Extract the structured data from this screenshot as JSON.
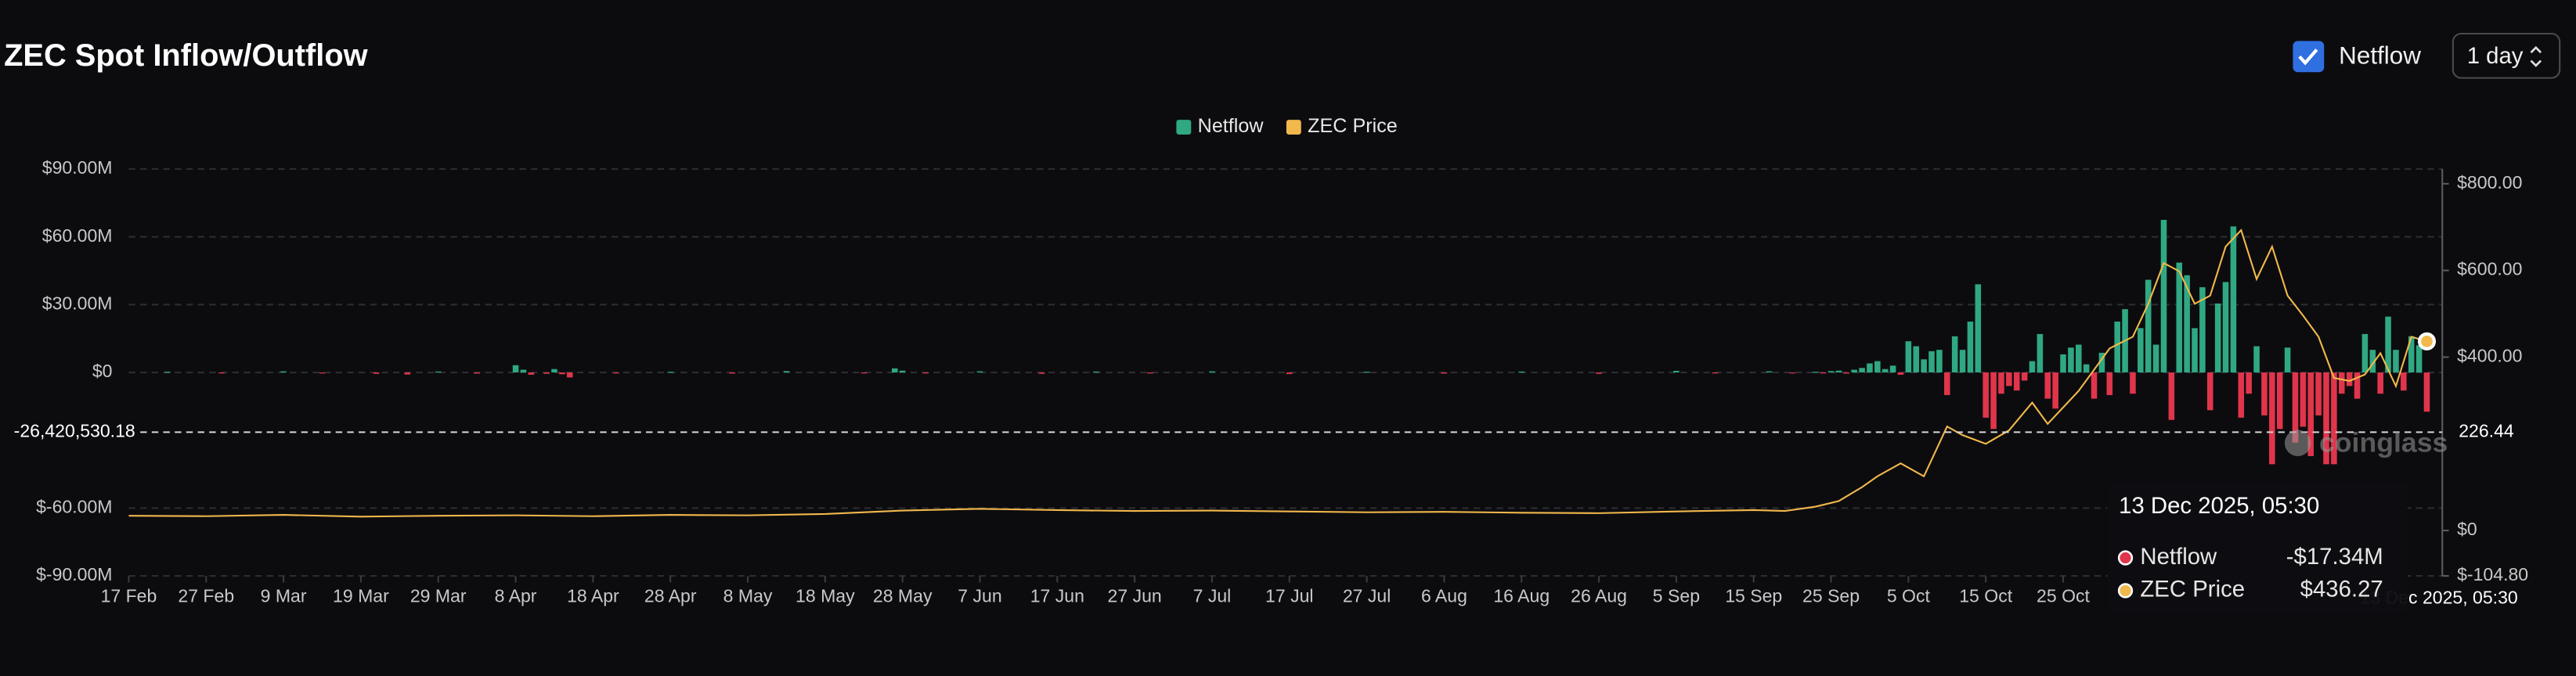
{
  "header": {
    "title": "ZEC Spot Inflow/Outflow",
    "checkbox_label": "Netflow",
    "interval": "1 day"
  },
  "watermark": "coinglass",
  "chart_data": {
    "type": "combo",
    "xlim": [
      0,
      299
    ],
    "xticks": [
      {
        "value": 0,
        "label": "17 Feb"
      },
      {
        "value": 10,
        "label": "27 Feb"
      },
      {
        "value": 20,
        "label": "9 Mar"
      },
      {
        "value": 30,
        "label": "19 Mar"
      },
      {
        "value": 40,
        "label": "29 Mar"
      },
      {
        "value": 50,
        "label": "8 Apr"
      },
      {
        "value": 60,
        "label": "18 Apr"
      },
      {
        "value": 70,
        "label": "28 Apr"
      },
      {
        "value": 80,
        "label": "8 May"
      },
      {
        "value": 90,
        "label": "18 May"
      },
      {
        "value": 100,
        "label": "28 May"
      },
      {
        "value": 110,
        "label": "7 Jun"
      },
      {
        "value": 120,
        "label": "17 Jun"
      },
      {
        "value": 130,
        "label": "27 Jun"
      },
      {
        "value": 140,
        "label": "7 Jul"
      },
      {
        "value": 150,
        "label": "17 Jul"
      },
      {
        "value": 160,
        "label": "27 Jul"
      },
      {
        "value": 170,
        "label": "6 Aug"
      },
      {
        "value": 180,
        "label": "16 Aug"
      },
      {
        "value": 190,
        "label": "26 Aug"
      },
      {
        "value": 200,
        "label": "5 Sep"
      },
      {
        "value": 210,
        "label": "15 Sep"
      },
      {
        "value": 220,
        "label": "25 Sep"
      },
      {
        "value": 230,
        "label": "5 Oct"
      },
      {
        "value": 240,
        "label": "15 Oct"
      },
      {
        "value": 250,
        "label": "25 Oct"
      }
    ],
    "ylim": [
      -90000000,
      90000000
    ],
    "yticks": [
      {
        "value": 90000000,
        "label": "$90.00M"
      },
      {
        "value": 60000000,
        "label": "$60.00M"
      },
      {
        "value": 30000000,
        "label": "$30.00M"
      },
      {
        "value": 0,
        "label": "$0"
      },
      {
        "value": -60000000,
        "label": "$-60.00M"
      },
      {
        "value": -90000000,
        "label": "$-90.00M"
      }
    ],
    "y2lim": [
      -104.8,
      834
    ],
    "y2ticks": [
      {
        "value": 800,
        "label": "$800.00"
      },
      {
        "value": 600,
        "label": "$600.00"
      },
      {
        "value": 400,
        "label": "$400.00"
      },
      {
        "value": 0,
        "label": "$0"
      },
      {
        "value": -104.8,
        "label": "$-104.80"
      }
    ],
    "grid": true,
    "series": [
      {
        "name": "Netflow",
        "kind": "bar",
        "color": "#2fa883",
        "negative_color": "#e0354b",
        "x": [
          5,
          12,
          20,
          25,
          32,
          36,
          40,
          45,
          50,
          51,
          52,
          54,
          55,
          56,
          57,
          63,
          70,
          78,
          85,
          95,
          99,
          100,
          103,
          110,
          118,
          125,
          132,
          140,
          150,
          160,
          170,
          180,
          190,
          200,
          205,
          212,
          215,
          218,
          219,
          220,
          221,
          222,
          223,
          224,
          225,
          226,
          227,
          228,
          229,
          230,
          231,
          232,
          233,
          234,
          235,
          236,
          237,
          238,
          239,
          240,
          241,
          242,
          243,
          244,
          245,
          246,
          247,
          248,
          249,
          250,
          251,
          252,
          253,
          254,
          255,
          256,
          257,
          258,
          259,
          260,
          261,
          262,
          263,
          264,
          265,
          266,
          267,
          268,
          269,
          270,
          271,
          272,
          273,
          274,
          275,
          276,
          277,
          278,
          279,
          280,
          281,
          282,
          283,
          284,
          285,
          286,
          287,
          288,
          289,
          290,
          291,
          292,
          293,
          294,
          295,
          296,
          297
        ],
        "values": [
          300000,
          -400000,
          500000,
          -300000,
          -600000,
          -900000,
          400000,
          -500000,
          3200000,
          1200000,
          -1000000,
          -600000,
          1500000,
          -800000,
          -2200000,
          -400000,
          300000,
          -500000,
          600000,
          -300000,
          1800000,
          800000,
          -400000,
          500000,
          -600000,
          400000,
          -300000,
          500000,
          -700000,
          300000,
          -500000,
          400000,
          -600000,
          700000,
          -400000,
          500000,
          -300000,
          300000,
          -400000,
          600000,
          800000,
          -500000,
          1200000,
          2000000,
          4000000,
          5000000,
          1500000,
          3000000,
          -1000000,
          13800000,
          11600000,
          5800000,
          9400000,
          10000000,
          -10000000,
          16000000,
          10000000,
          22500000,
          39000000,
          -20000000,
          -25000000,
          -9400000,
          -6000000,
          -8000000,
          -3600000,
          5000000,
          17000000,
          -11600000,
          -16000000,
          8000000,
          11000000,
          12300000,
          3600000,
          -11600000,
          8700000,
          -10000000,
          22500000,
          28000000,
          -9400000,
          19600000,
          41000000,
          12300000,
          67500000,
          -21000000,
          48600000,
          43000000,
          19600000,
          37700000,
          -16700000,
          30500000,
          40000000,
          64600000,
          -20000000,
          -9400000,
          11600000,
          -19000000,
          -40600000,
          -25000000,
          11000000,
          -31000000,
          -24000000,
          -37000000,
          -19000000,
          -40600000,
          -40600000,
          -9400000,
          -6000000,
          -11600000,
          17000000,
          10000000,
          -9400000,
          24700000,
          10000000,
          -8000000,
          16000000,
          12000000,
          -17340000
        ]
      },
      {
        "name": "ZEC Price",
        "kind": "line",
        "axis": "y2",
        "color": "#f2b84b",
        "x": [
          0,
          10,
          20,
          30,
          40,
          50,
          60,
          70,
          80,
          90,
          100,
          110,
          120,
          130,
          140,
          150,
          160,
          170,
          180,
          190,
          200,
          210,
          214,
          218,
          221,
          224,
          226,
          229,
          232,
          235,
          237,
          240,
          243,
          246,
          248,
          252,
          256,
          259,
          261,
          263,
          265,
          267,
          269,
          271,
          273,
          275,
          277,
          279,
          281,
          283,
          285,
          287,
          289,
          291,
          293,
          295,
          297
        ],
        "values": [
          34,
          33,
          36,
          32,
          34,
          35,
          33,
          36,
          35,
          38,
          46,
          50,
          47,
          45,
          46,
          44,
          42,
          43,
          41,
          40,
          44,
          47,
          45,
          55,
          68,
          100,
          125,
          155,
          125,
          240,
          220,
          200,
          231,
          295,
          246,
          322,
          420,
          447,
          523,
          617,
          598,
          523,
          542,
          655,
          693,
          580,
          655,
          542,
          496,
          447,
          352,
          345,
          360,
          409,
          333,
          447,
          436.27
        ]
      }
    ],
    "crosshair": {
      "y": {
        "value": -26420530.18,
        "label": "-26,420,530.18"
      },
      "y2": 226.44
    },
    "tooltip": {
      "date": "13 Dec 2025, 05:30",
      "values": [
        "-$17.34M",
        "$436.27"
      ]
    }
  }
}
